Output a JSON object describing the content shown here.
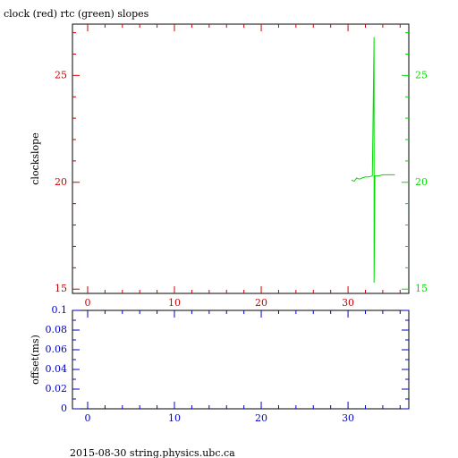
{
  "title": "clock (red) rtc (green) slopes",
  "footer": "2015-08-30 string.physics.ubc.ca",
  "chart_data": [
    {
      "type": "line",
      "ylabel": "clockslope",
      "xlim": [
        -1.75,
        37
      ],
      "xticks": [
        0,
        10,
        20,
        30
      ],
      "x_minor_ticks": [
        2,
        4,
        6,
        8,
        12,
        14,
        16,
        18,
        22,
        24,
        26,
        28,
        32,
        34,
        36
      ],
      "x_tick_color": "#cc0000",
      "ylim": [
        14.8,
        27.4
      ],
      "yticks": [
        15,
        20,
        25
      ],
      "y_minor_ticks": [
        16,
        17,
        18,
        19,
        21,
        22,
        23,
        24,
        26,
        27
      ],
      "y_tick_color": "#cc0000",
      "y2lim": [
        14.8,
        27.4
      ],
      "y2ticks": [
        15,
        20,
        25
      ],
      "y2_tick_color": "#00dd00",
      "series": [
        {
          "color": "#00dd00",
          "axis": "y2",
          "x": [
            30.4,
            30.7,
            31,
            31.3,
            31.6,
            32,
            32.4,
            32.8,
            33,
            33,
            33.1,
            33.5,
            34,
            34.5,
            35,
            35.4
          ],
          "values": [
            20.1,
            20.05,
            20.2,
            20.15,
            20.2,
            20.25,
            20.25,
            20.3,
            26.8,
            15.3,
            20.3,
            20.3,
            20.35,
            20.35,
            20.35,
            20.35
          ]
        }
      ]
    },
    {
      "type": "line",
      "ylabel": "offset(ms)",
      "xlim": [
        -1.75,
        37
      ],
      "xticks": [
        0,
        10,
        20,
        30
      ],
      "x_minor_ticks": [
        2,
        4,
        6,
        8,
        12,
        14,
        16,
        18,
        22,
        24,
        26,
        28,
        32,
        34,
        36
      ],
      "x_tick_color": "#0000cc",
      "ylim": [
        0,
        0.1
      ],
      "yticks": [
        0,
        0.02,
        0.04,
        0.06,
        0.08,
        0.1
      ],
      "y_minor_ticks": [
        0.01,
        0.03,
        0.05,
        0.07,
        0.09
      ],
      "y_tick_color": "#0000cc",
      "series": []
    }
  ]
}
